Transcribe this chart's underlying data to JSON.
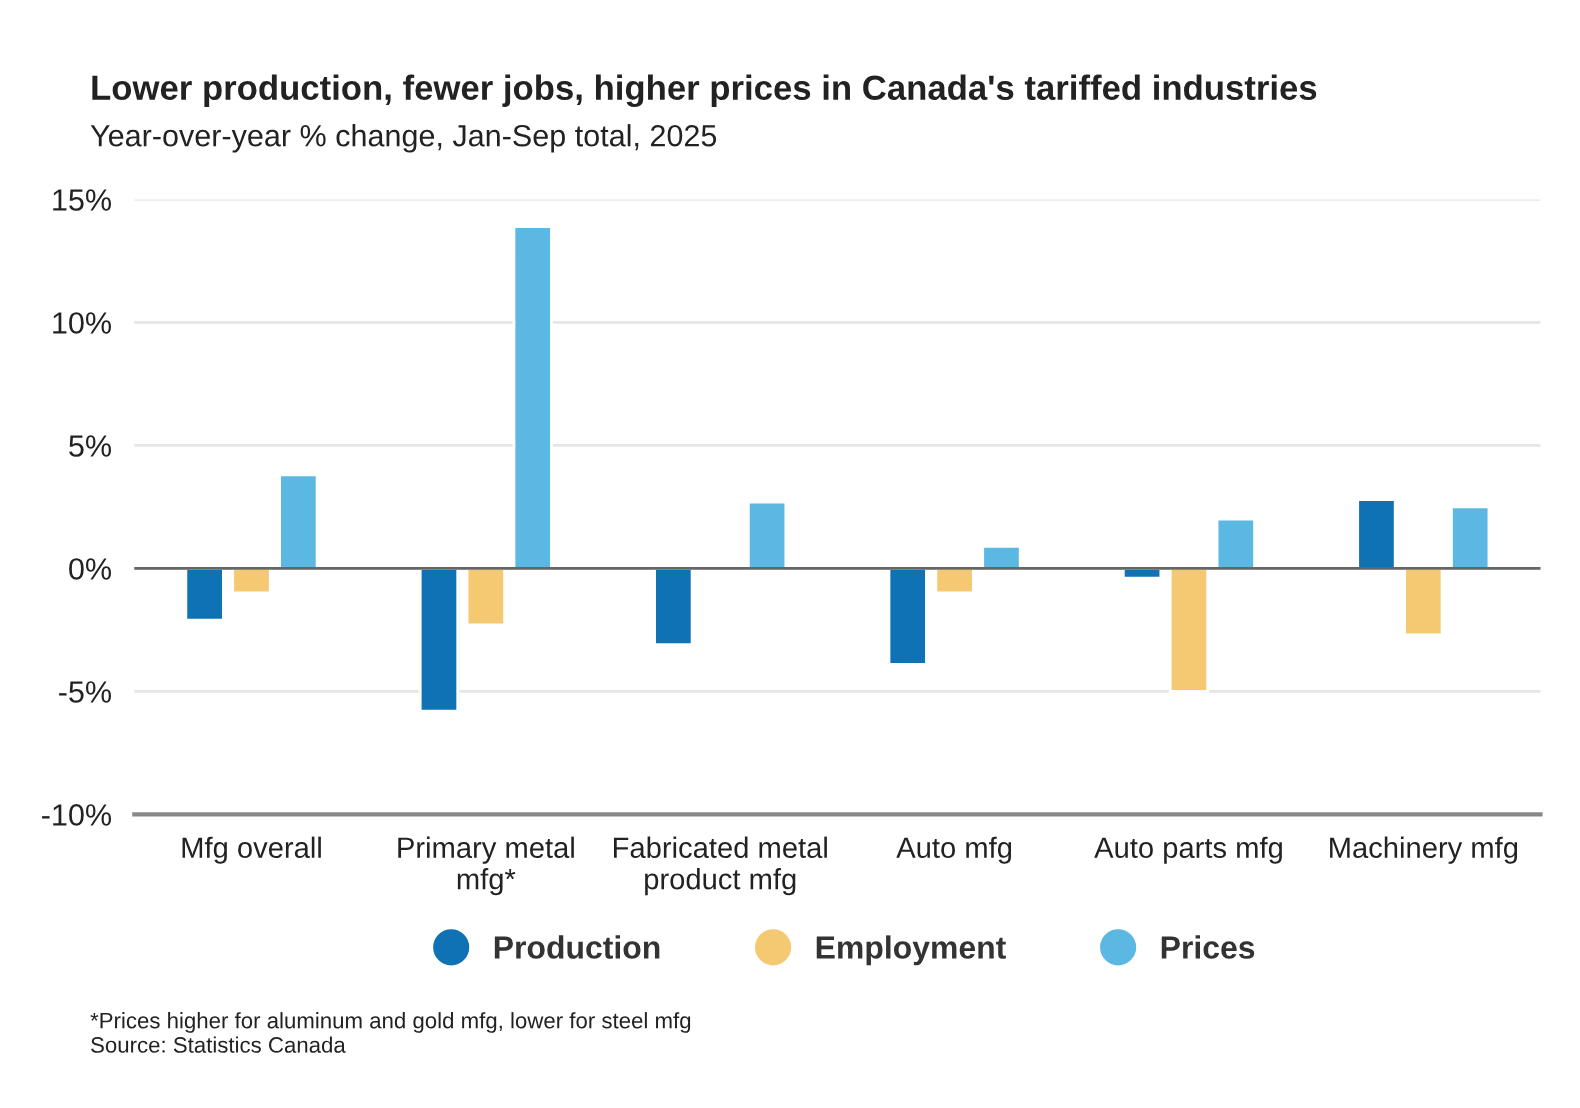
{
  "chart_data": {
    "type": "bar",
    "title": "Lower production, fewer jobs, higher prices in Canada's tariffed industries",
    "subtitle": "Year-over-year % change, Jan-Sep total, 2025",
    "categories": [
      "Mfg overall",
      "Primary metal\nmfg*",
      "Fabricated metal\nproduct mfg",
      "Auto mfg",
      "Auto parts mfg",
      "Machinery mfg"
    ],
    "series": [
      {
        "name": "Production",
        "color": "#0e72b5",
        "values": [
          -2.1,
          -5.8,
          -3.1,
          -3.9,
          -0.4,
          2.8
        ]
      },
      {
        "name": "Employment",
        "color": "#f4c971",
        "values": [
          -1.0,
          -2.3,
          null,
          -1.0,
          -5.0,
          -2.7
        ]
      },
      {
        "name": "Prices",
        "color": "#5bb8e3",
        "values": [
          3.8,
          13.9,
          2.7,
          0.9,
          2.0,
          2.5
        ]
      }
    ],
    "ylim": [
      -10,
      15
    ],
    "yticks": [
      {
        "value": -10,
        "label": "-10%"
      },
      {
        "value": -5,
        "label": "-5%"
      },
      {
        "value": 0,
        "label": "0%"
      },
      {
        "value": 5,
        "label": "5%"
      },
      {
        "value": 10,
        "label": "10%"
      },
      {
        "value": 15,
        "label": "15%"
      }
    ],
    "grid": "y",
    "legend": "bottom",
    "annotations": [
      "*Prices higher for aluminum and gold mfg, lower for steel mfg",
      "Source: Statistics Canada"
    ]
  }
}
